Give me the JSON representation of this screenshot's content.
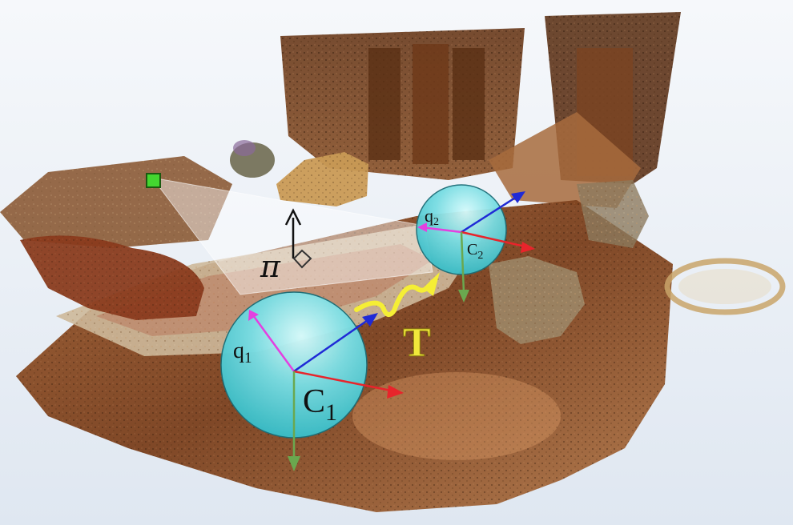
{
  "labels": {
    "plane": "π",
    "q1": "q",
    "q1_sub": "1",
    "c1": "C",
    "c1_sub": "1",
    "q2": "q",
    "q2_sub": "2",
    "c2": "C",
    "c2_sub": "2",
    "transform": "T"
  },
  "colors": {
    "background_top": "#f6f8fb",
    "background_bottom": "#dfe7f1",
    "sphere": "#4fcfd6",
    "sphere_highlight": "#b9f3f5",
    "axis_x": "#e8242b",
    "axis_y": "#6aa84f",
    "axis_z": "#1f2ad6",
    "q_axis": "#e340e0",
    "transform_arrow": "#f5ee35",
    "transform_text": "#f1e93b",
    "plane_fill": "#ffffff",
    "point_marker": "#44d630",
    "normal_arrow": "#111111"
  },
  "icons": {
    "point_marker": "green-square-marker",
    "plane": "translucent-triangle-plane",
    "normal": "normal-arrow-icon"
  }
}
